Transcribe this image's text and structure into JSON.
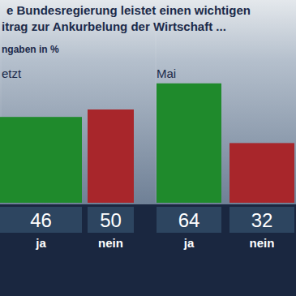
{
  "chart_data": [
    {
      "type": "bar",
      "title": "e Bundesregierung leistet einen wichtigen\nitrag zur Ankurbelung der Wirtschaft ...",
      "subtitle": "ngaben in %",
      "annotation": "etzt",
      "categories": [
        "ja",
        "nein"
      ],
      "values": [
        46,
        50
      ],
      "colors": [
        "#1f8a2c",
        "#a8262b"
      ],
      "ylim": [
        0,
        100
      ],
      "data_labels": true,
      "tick_labels": "x"
    },
    {
      "type": "bar",
      "annotation": "Mai",
      "categories": [
        "ja",
        "nein"
      ],
      "values": [
        64,
        32
      ],
      "colors": [
        "#1f8a2c",
        "#a8262b"
      ],
      "ylim": [
        0,
        100
      ],
      "data_labels": true,
      "tick_labels": "x"
    }
  ]
}
